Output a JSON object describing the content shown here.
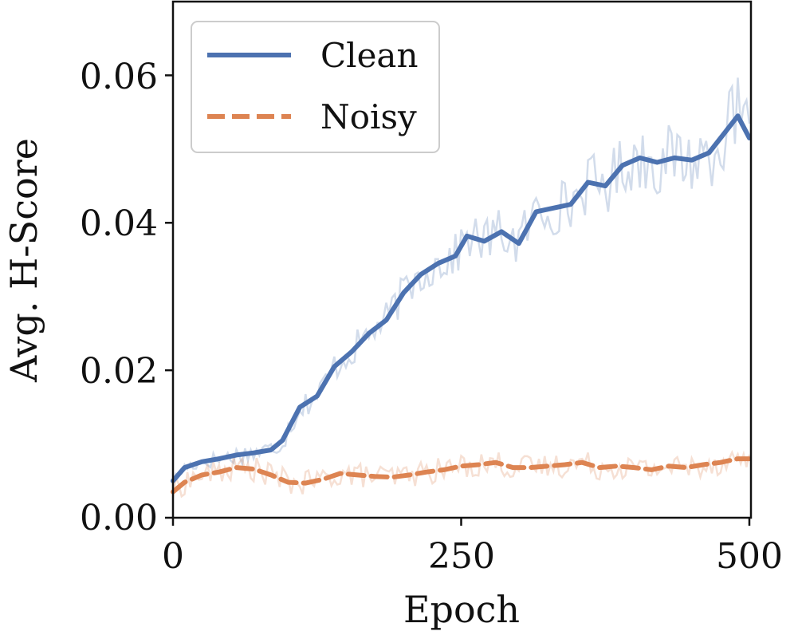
{
  "chart_data": {
    "type": "line",
    "title": "",
    "xlabel": "Epoch",
    "ylabel": "Avg. H-Score",
    "xlim": [
      0,
      500
    ],
    "ylim": [
      0,
      0.07
    ],
    "xticks": [
      0,
      250,
      500
    ],
    "xtick_labels": [
      "0",
      "250",
      "500"
    ],
    "yticks": [
      0,
      0.02,
      0.04,
      0.06
    ],
    "ytick_labels": [
      "0.00",
      "0.02",
      "0.04",
      "0.06"
    ],
    "grid": false,
    "legend_position": "top-left",
    "series": [
      {
        "name": "Clean",
        "color": "#4c72b0",
        "style": "solid",
        "x": [
          0,
          10,
          25,
          40,
          55,
          70,
          85,
          95,
          110,
          125,
          140,
          155,
          170,
          185,
          200,
          215,
          230,
          245,
          255,
          270,
          285,
          300,
          315,
          330,
          345,
          360,
          375,
          390,
          405,
          420,
          435,
          450,
          465,
          480,
          490,
          500
        ],
        "y": [
          0.005,
          0.0068,
          0.0076,
          0.008,
          0.0085,
          0.0088,
          0.0092,
          0.0105,
          0.015,
          0.0165,
          0.0205,
          0.0225,
          0.025,
          0.0268,
          0.0305,
          0.033,
          0.0345,
          0.0355,
          0.0382,
          0.0375,
          0.0388,
          0.0372,
          0.0415,
          0.042,
          0.0425,
          0.0455,
          0.045,
          0.0478,
          0.0488,
          0.0482,
          0.0488,
          0.0485,
          0.0495,
          0.0525,
          0.0545,
          0.0515
        ]
      },
      {
        "name": "Noisy",
        "color": "#dd8452",
        "style": "dashed",
        "x": [
          0,
          10,
          25,
          40,
          55,
          70,
          85,
          100,
          115,
          130,
          145,
          160,
          175,
          190,
          205,
          220,
          235,
          250,
          265,
          280,
          295,
          310,
          325,
          340,
          355,
          370,
          385,
          400,
          415,
          430,
          445,
          460,
          475,
          490,
          500
        ],
        "y": [
          0.0035,
          0.0048,
          0.0058,
          0.0062,
          0.0068,
          0.0066,
          0.0058,
          0.0048,
          0.0047,
          0.0052,
          0.006,
          0.0058,
          0.0056,
          0.0055,
          0.0058,
          0.0062,
          0.0065,
          0.007,
          0.0072,
          0.0075,
          0.0068,
          0.0068,
          0.007,
          0.0072,
          0.0075,
          0.0068,
          0.007,
          0.0068,
          0.0065,
          0.007,
          0.0068,
          0.0072,
          0.0075,
          0.008,
          0.008
        ]
      }
    ]
  }
}
